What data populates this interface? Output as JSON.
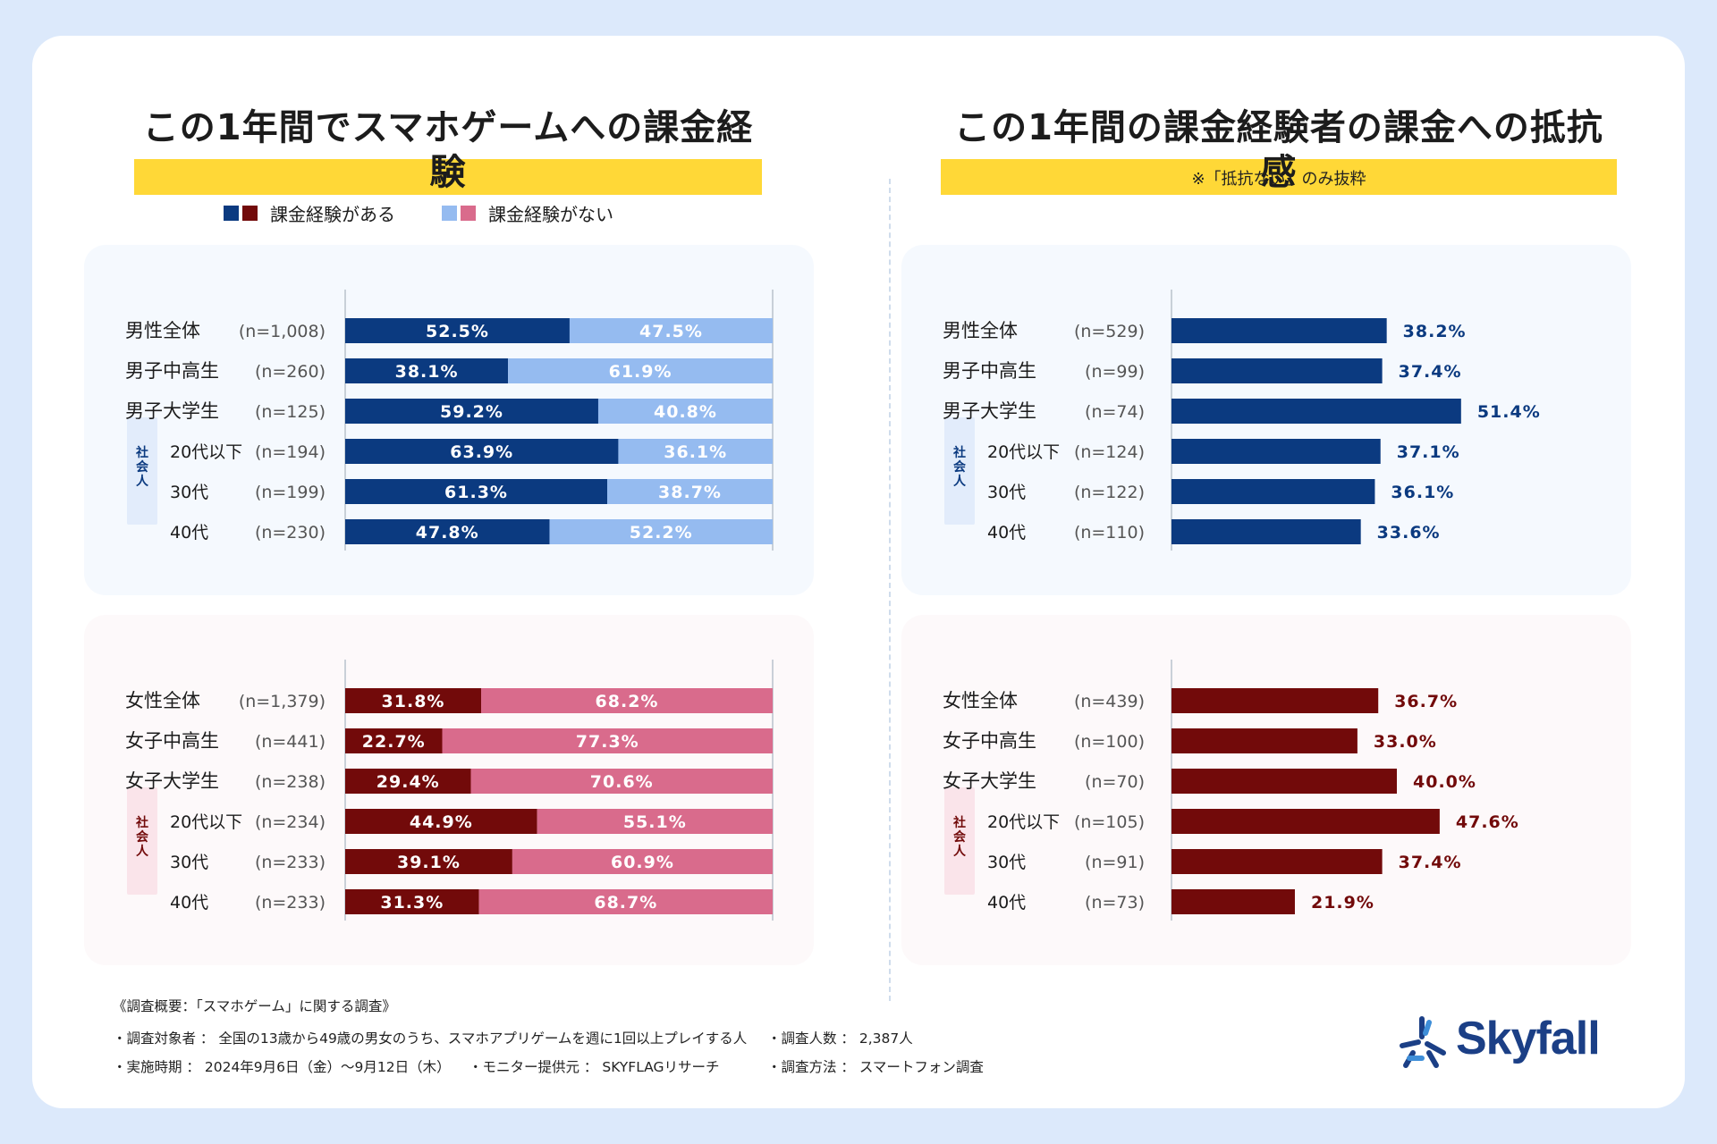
{
  "left_title": "この1年間でスマホゲームへの課金経験",
  "right_title": "この1年間の課金経験者の課金への抵抗感",
  "right_note": "※「抵抗ない」のみ抜粋",
  "legend": {
    "has_label": "課金経験がある",
    "none_label": "課金経験がない"
  },
  "society_label": "社会人",
  "colors": {
    "male_dark": "#0b3a80",
    "male_light": "#95bbf0",
    "female_dark": "#720a0a",
    "female_light": "#d96b8c",
    "male_panel": "#f5f9fe",
    "female_panel": "#fdf9fa",
    "male_tag": "#e2ecfb",
    "female_tag": "#fae4ea",
    "title_highlight": "#ffd837"
  },
  "chart_data": [
    {
      "id": "male_experience",
      "type": "bar",
      "stacked": "100%",
      "orientation": "horizontal",
      "categories": [
        "男性全体",
        "男子中高生",
        "男子大学生",
        "20代以下",
        "30代",
        "40代"
      ],
      "n_labels": [
        "(n=1,008)",
        "(n=260)",
        "(n=125)",
        "(n=194)",
        "(n=199)",
        "(n=230)"
      ],
      "series": [
        {
          "name": "課金経験がある",
          "values": [
            52.5,
            38.1,
            59.2,
            63.9,
            61.3,
            47.8
          ],
          "labels": [
            "52.5%",
            "38.1%",
            "59.2%",
            "63.9%",
            "61.3%",
            "47.8%"
          ]
        },
        {
          "name": "課金経験がない",
          "values": [
            47.5,
            61.9,
            40.8,
            36.1,
            38.7,
            52.2
          ],
          "labels": [
            "47.5%",
            "61.9%",
            "40.8%",
            "36.1%",
            "38.7%",
            "52.2%"
          ]
        }
      ],
      "xlim": [
        0,
        100
      ]
    },
    {
      "id": "female_experience",
      "type": "bar",
      "stacked": "100%",
      "orientation": "horizontal",
      "categories": [
        "女性全体",
        "女子中高生",
        "女子大学生",
        "20代以下",
        "30代",
        "40代"
      ],
      "n_labels": [
        "(n=1,379)",
        "(n=441)",
        "(n=238)",
        "(n=234)",
        "(n=233)",
        "(n=233)"
      ],
      "series": [
        {
          "name": "課金経験がある",
          "values": [
            31.8,
            22.7,
            29.4,
            44.9,
            39.1,
            31.3
          ],
          "labels": [
            "31.8%",
            "22.7%",
            "29.4%",
            "44.9%",
            "39.1%",
            "31.3%"
          ]
        },
        {
          "name": "課金経験がない",
          "values": [
            68.2,
            77.3,
            70.6,
            55.1,
            60.9,
            68.7
          ],
          "labels": [
            "68.2%",
            "77.3%",
            "70.6%",
            "55.1%",
            "60.9%",
            "68.7%"
          ]
        }
      ],
      "xlim": [
        0,
        100
      ]
    },
    {
      "id": "male_no_resistance",
      "type": "bar",
      "orientation": "horizontal",
      "categories": [
        "男性全体",
        "男子中高生",
        "男子大学生",
        "20代以下",
        "30代",
        "40代"
      ],
      "n_labels": [
        "(n=529)",
        "(n=99)",
        "(n=74)",
        "(n=124)",
        "(n=122)",
        "(n=110)"
      ],
      "values": [
        38.2,
        37.4,
        51.4,
        37.1,
        36.1,
        33.6
      ],
      "labels": [
        "38.2%",
        "37.4%",
        "51.4%",
        "37.1%",
        "36.1%",
        "33.6%"
      ],
      "xlim": [
        0,
        60
      ]
    },
    {
      "id": "female_no_resistance",
      "type": "bar",
      "orientation": "horizontal",
      "categories": [
        "女性全体",
        "女子中高生",
        "女子大学生",
        "20代以下",
        "30代",
        "40代"
      ],
      "n_labels": [
        "(n=439)",
        "(n=100)",
        "(n=70)",
        "(n=105)",
        "(n=91)",
        "(n=73)"
      ],
      "values": [
        36.7,
        33.0,
        40.0,
        47.6,
        37.4,
        21.9
      ],
      "labels": [
        "36.7%",
        "33.0%",
        "40.0%",
        "47.6%",
        "37.4%",
        "21.9%"
      ],
      "xlim": [
        0,
        60
      ]
    }
  ],
  "footer": {
    "title": "《調査概要：「スマホゲーム」に関する調査》",
    "target": "・調査対象者 ： 全国の13歳から49歳の男女のうち、スマホアプリゲームを週に1回以上プレイする人",
    "count": "・調査人数 ： 2,387人",
    "period": "・実施時期 ： 2024年9月6日（金）〜9月12日（木）",
    "monitor": "・モニター提供元 ： SKYFLAGリサーチ",
    "method": "・調査方法 ： スマートフォン調査"
  },
  "logo": {
    "text": "Skyfall",
    "icon": "skyfall-star-icon"
  }
}
